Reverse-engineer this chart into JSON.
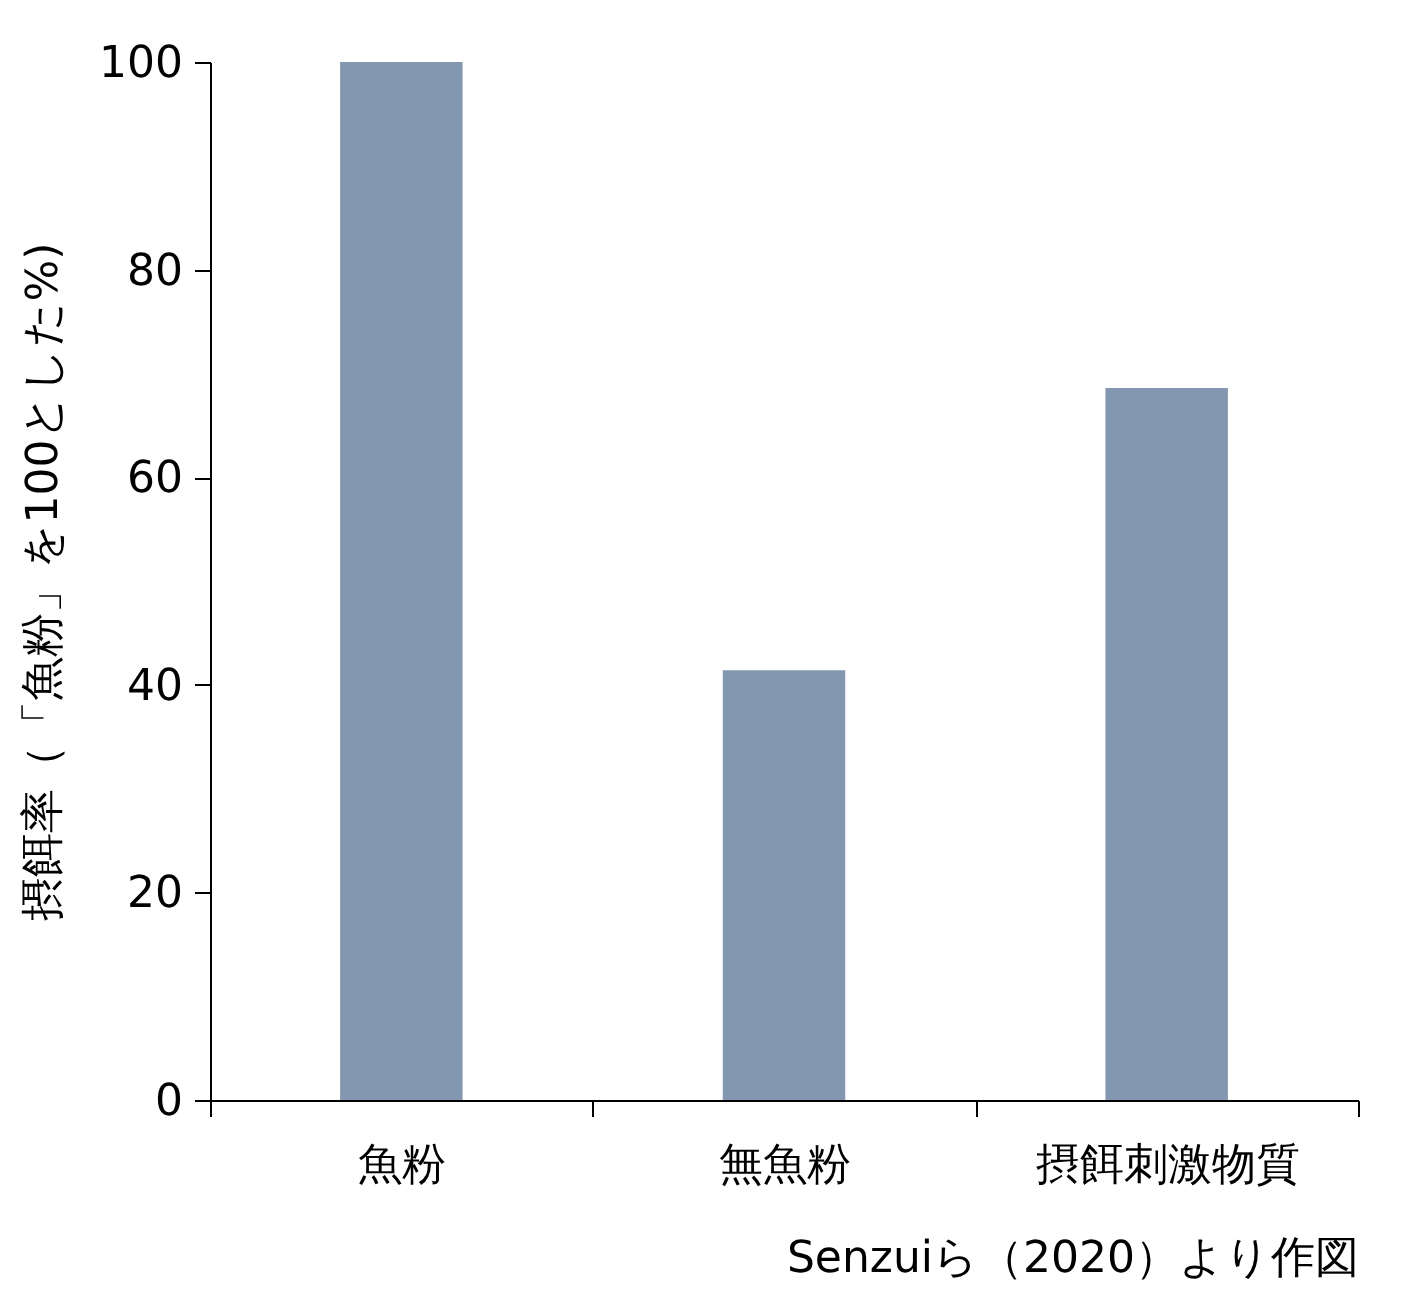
{
  "chart_data": {
    "type": "bar",
    "ylabel": "摂餌率（「魚粉」を100とした%)",
    "categories": [
      "魚粉",
      "無魚粉",
      "摂餌刺激物質"
    ],
    "values": [
      100,
      41.4,
      68.6
    ],
    "color": "#8497b0",
    "ylim": [
      0,
      100
    ],
    "yticks": [
      0,
      20,
      40,
      60,
      80,
      100
    ],
    "grid": false,
    "annotations": [
      "Senzuiら（2020）より作図"
    ]
  }
}
